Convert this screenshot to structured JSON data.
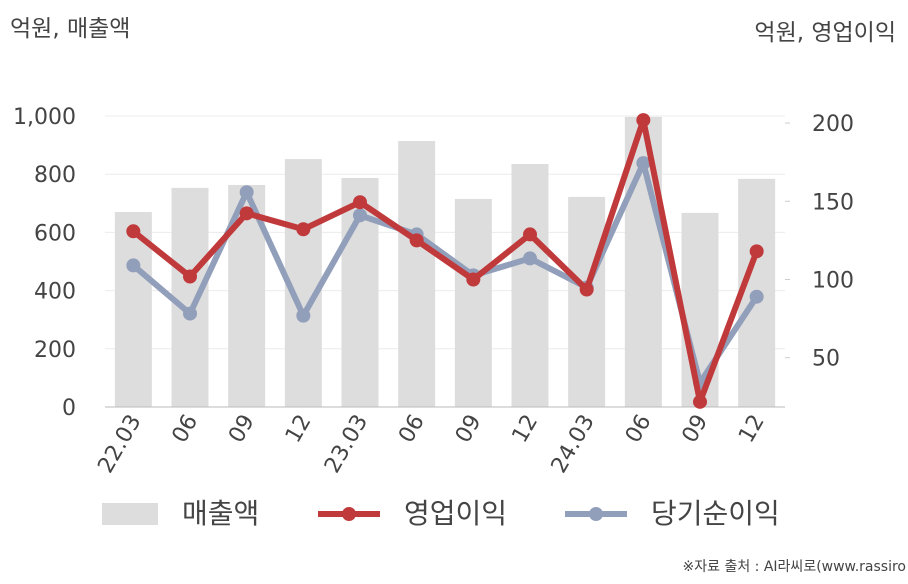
{
  "chart_data": {
    "type": "bar-line",
    "y_label": "억원, 매출액",
    "y2_label": "억원, 영업이익",
    "source": "※자료 출처 : AI라씨로(www.rassiro",
    "categories": [
      "22.03",
      "06",
      "09",
      "12",
      "23.03",
      "06",
      "09",
      "12",
      "24.03",
      "06",
      "09",
      "12"
    ],
    "ylim": [
      0,
      1000
    ],
    "yticks": [
      0,
      200,
      400,
      600,
      800,
      {
        "value": 1000,
        "label": "1,000"
      }
    ],
    "y2lim": [
      18.5,
      204.5
    ],
    "y2ticks": [
      50,
      100,
      150,
      200
    ],
    "grid": true,
    "series": [
      {
        "name": "매출액",
        "kind": "bar",
        "color": "#dddddd",
        "values": [
          670,
          753,
          763,
          852,
          787,
          914,
          715,
          835,
          722,
          997,
          667,
          784
        ]
      },
      {
        "name": "영업이익",
        "kind": "line",
        "axis": "y2",
        "color": "#c0393b",
        "values": [
          130.8,
          101.9,
          142.3,
          132.1,
          149.4,
          125,
          100,
          128.8,
          93.6,
          201.9,
          21.8,
          118
        ]
      },
      {
        "name": "당기순이익",
        "kind": "line",
        "axis": "y2",
        "color": "#929fba",
        "values": [
          109,
          78.2,
          155.8,
          76.9,
          141,
          128.8,
          102.6,
          113.5,
          94.9,
          174.4,
          34,
          89
        ]
      }
    ]
  }
}
